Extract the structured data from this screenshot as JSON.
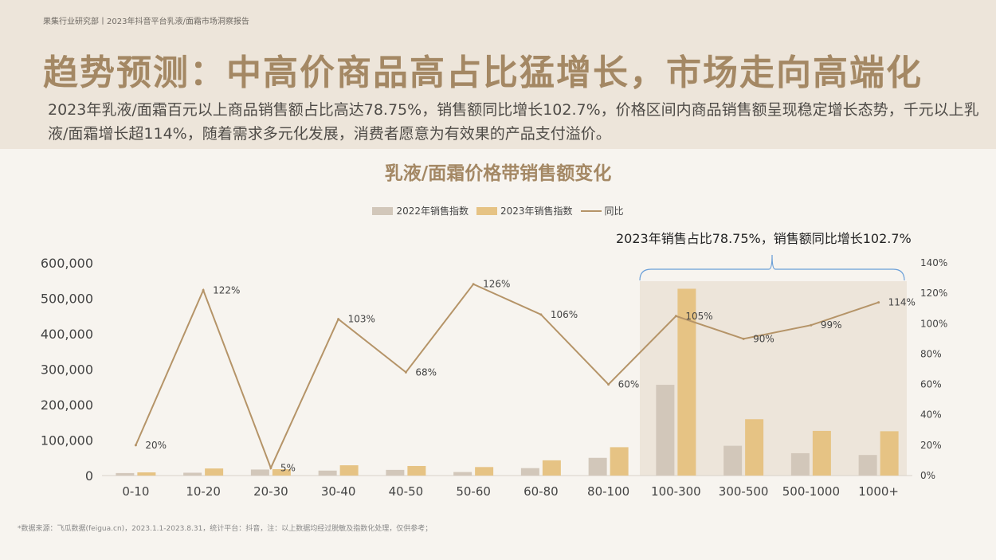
{
  "header": {
    "breadcrumb": "果集行业研究部丨2023年抖音平台乳液/面霜市场洞察报告",
    "title": "趋势预测：中高价商品高占比猛增长，市场走向高端化",
    "summary": "2023年乳液/面霜百元以上商品销售额占比高达78.75%，销售额同比增长102.7%，价格区间内商品销售额呈现稳定增长态势，千元以上乳液/面霜增长超114%，随着需求多元化发展，消费者愿意为有效果的产品支付溢价。"
  },
  "callout": "2023年销售占比78.75%，销售额同比增长102.7%",
  "footnote": "*数据来源：飞瓜数据(feigua.cn)，2023.1.1-2023.8.31，统计平台：抖音，注：以上数据均经过脱敏及指数化处理，仅供参考；",
  "colors": {
    "series2022": "#d2c7ba",
    "series2023": "#e6c384",
    "line": "#b59468",
    "title": "#a48864",
    "highlight": "#ede5da",
    "bracket": "#6a9fd8"
  },
  "chart_data": {
    "type": "bar",
    "title": "乳液/面霜价格带销售额变化",
    "categories": [
      "0-10",
      "10-20",
      "20-30",
      "30-40",
      "40-50",
      "50-60",
      "60-80",
      "80-100",
      "100-300",
      "300-500",
      "500-1000",
      "1000+"
    ],
    "series": [
      {
        "name": "2022年销售指数",
        "type": "bar",
        "values": [
          7000,
          8000,
          17000,
          14000,
          16000,
          10000,
          21000,
          50000,
          256000,
          84000,
          63000,
          58000
        ]
      },
      {
        "name": "2023年销售指数",
        "type": "bar",
        "values": [
          9000,
          20000,
          18000,
          29000,
          27000,
          24000,
          43000,
          80000,
          527000,
          159000,
          126000,
          125000
        ]
      },
      {
        "name": "同比",
        "type": "line",
        "axis": "right",
        "values": [
          20,
          122,
          5,
          103,
          68,
          126,
          106,
          60,
          105,
          90,
          99,
          114
        ]
      }
    ],
    "line_labels": [
      "20%",
      "122%",
      "5%",
      "103%",
      "68%",
      "126%",
      "106%",
      "60%",
      "105%",
      "90%",
      "99%",
      "114%"
    ],
    "left_axis": {
      "ylim": [
        0,
        600000
      ],
      "ticks": [
        "0",
        "100,000",
        "200,000",
        "300,000",
        "400,000",
        "500,000",
        "600,000"
      ]
    },
    "right_axis": {
      "ylim": [
        0,
        140
      ],
      "ticks": [
        "0%",
        "20%",
        "40%",
        "60%",
        "80%",
        "100%",
        "120%",
        "140%"
      ]
    },
    "highlight_categories": [
      "100-300",
      "300-500",
      "500-1000",
      "1000+"
    ],
    "legend": "top-center",
    "grid": false
  }
}
